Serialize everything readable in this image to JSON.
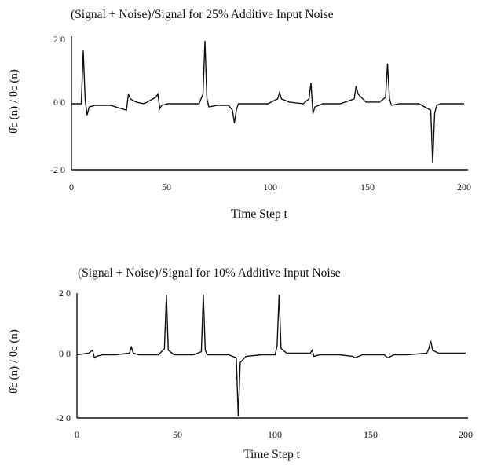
{
  "chart_data": [
    {
      "type": "line",
      "title": "(Signal + Noise)/Signal for 25% Additive Input Noise",
      "xlabel": "Time Step t",
      "ylabel": "θ̂c (n) / θc (n)",
      "xlim": [
        0,
        200
      ],
      "ylim": [
        -2.0,
        2.0
      ],
      "xticks": [
        "0",
        "50",
        "100",
        "150",
        "200"
      ],
      "yticks": [
        "2 0",
        "0 0",
        "-2 0"
      ],
      "grid": false,
      "series": [
        {
          "x": [
            0,
            5,
            6,
            7,
            8,
            9,
            12,
            20,
            28,
            29,
            30,
            33,
            37,
            43,
            44,
            45,
            46,
            49,
            55,
            65,
            67,
            68,
            69,
            70,
            74,
            80,
            82,
            83,
            84,
            85,
            90,
            100,
            105,
            106,
            107,
            111,
            118,
            121,
            122,
            123,
            124,
            128,
            137,
            144,
            145,
            146,
            150,
            157,
            160,
            161,
            162,
            163,
            167,
            177,
            183,
            184,
            185,
            186,
            188,
            200
          ],
          "y": [
            0.0,
            0.0,
            1.65,
            0.1,
            -0.35,
            -0.1,
            -0.05,
            -0.05,
            -0.2,
            0.3,
            0.15,
            0.05,
            0.0,
            0.2,
            0.3,
            -0.15,
            -0.05,
            0.0,
            0.0,
            0.0,
            0.3,
            1.95,
            0.15,
            -0.1,
            -0.05,
            -0.05,
            -0.2,
            -0.6,
            -0.2,
            0.0,
            0.0,
            0.0,
            0.15,
            0.35,
            0.15,
            0.05,
            0.0,
            0.15,
            0.65,
            -0.3,
            -0.1,
            0.0,
            0.0,
            0.15,
            0.55,
            0.3,
            0.05,
            0.05,
            0.2,
            1.25,
            0.15,
            -0.05,
            0.0,
            0.0,
            -0.2,
            -1.85,
            -0.3,
            -0.05,
            0.0,
            0.0
          ]
        }
      ]
    },
    {
      "type": "line",
      "title": "(Signal + Noise)/Signal for 10% Additive Input Noise",
      "xlabel": "Time Step t",
      "ylabel": "θ̂c (n) / θc (n)",
      "xlim": [
        0,
        200
      ],
      "ylim": [
        -2.0,
        2.0
      ],
      "xticks": [
        "0",
        "50",
        "100",
        "150",
        "200"
      ],
      "yticks": [
        "2 0",
        "0 0",
        "-2 0"
      ],
      "grid": false,
      "series": [
        {
          "x": [
            0,
            6,
            8,
            9,
            10,
            13,
            20,
            27,
            28,
            29,
            32,
            42,
            45,
            46,
            47,
            50,
            60,
            64,
            65,
            66,
            67,
            70,
            78,
            82,
            83,
            84,
            87,
            95,
            102,
            103,
            104,
            105,
            108,
            115,
            120,
            121,
            122,
            125,
            135,
            142,
            143,
            147,
            158,
            159,
            160,
            163,
            170,
            180,
            181,
            182,
            183,
            186,
            200
          ],
          "y": [
            0.0,
            0.05,
            0.15,
            -0.1,
            -0.05,
            0.0,
            0.0,
            0.05,
            0.25,
            0.05,
            0.0,
            0.0,
            0.2,
            1.95,
            0.15,
            0.0,
            0.0,
            0.1,
            1.95,
            0.15,
            0.0,
            0.0,
            0.0,
            -0.1,
            -2.0,
            -0.25,
            -0.05,
            0.0,
            0.0,
            0.3,
            1.95,
            0.2,
            0.05,
            0.05,
            0.05,
            0.15,
            -0.05,
            0.0,
            0.0,
            -0.05,
            -0.1,
            0.0,
            0.0,
            -0.05,
            -0.1,
            0.0,
            0.0,
            0.05,
            0.2,
            0.45,
            0.15,
            0.05,
            0.05
          ]
        }
      ]
    }
  ]
}
